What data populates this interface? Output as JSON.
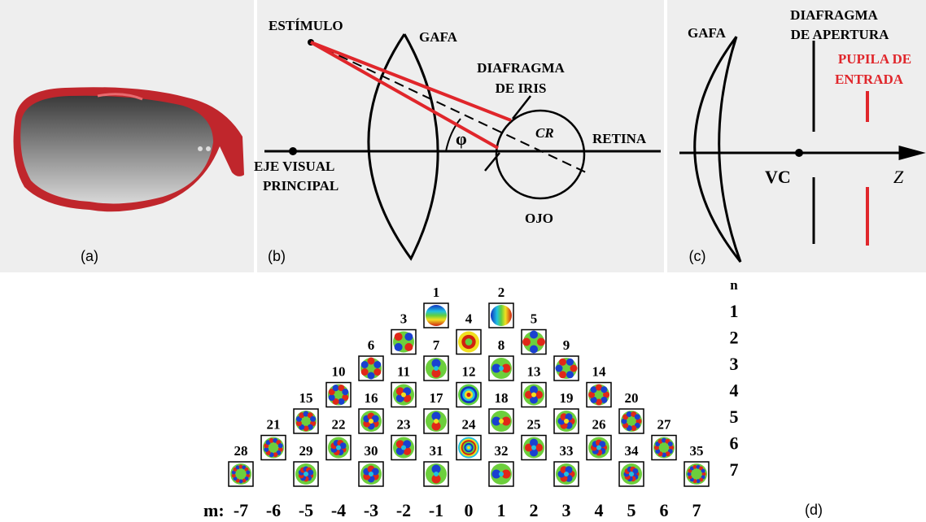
{
  "panel_a": {
    "label": "(a)"
  },
  "panel_b": {
    "label": "(b)",
    "stimulus": "ESTÍMULO",
    "lens": "GAFA",
    "iris": [
      "DIAFRAGMA",
      "DE IRIS"
    ],
    "center": "CR",
    "retina": "RETINA",
    "angle": "φ",
    "axis": [
      "EJE VISUAL",
      "PRINCIPAL"
    ],
    "eye": "OJO"
  },
  "panel_c": {
    "label": "(c)",
    "lens": "GAFA",
    "stop": [
      "DIAFRAGMA",
      "DE APERTURA"
    ],
    "pupil": [
      "PUPILA DE",
      "ENTRADA"
    ],
    "vertex": "VC",
    "axis": "Z"
  },
  "panel_d": {
    "label": "(d)",
    "m_title": "m:",
    "m_values": [
      "-7",
      "-6",
      "-5",
      "-4",
      "-3",
      "-2",
      "-1",
      "0",
      "1",
      "2",
      "3",
      "4",
      "5",
      "6",
      "7"
    ],
    "n_title": "n",
    "n_values": [
      "1",
      "2",
      "3",
      "4",
      "5",
      "6",
      "7"
    ],
    "tiles": [
      "1",
      "2",
      "3",
      "4",
      "5",
      "6",
      "7",
      "8",
      "9",
      "10",
      "11",
      "12",
      "13",
      "14",
      "15",
      "16",
      "17",
      "18",
      "19",
      "20",
      "21",
      "22",
      "23",
      "24",
      "25",
      "26",
      "27",
      "28",
      "29",
      "30",
      "31",
      "32",
      "33",
      "34",
      "35"
    ]
  }
}
